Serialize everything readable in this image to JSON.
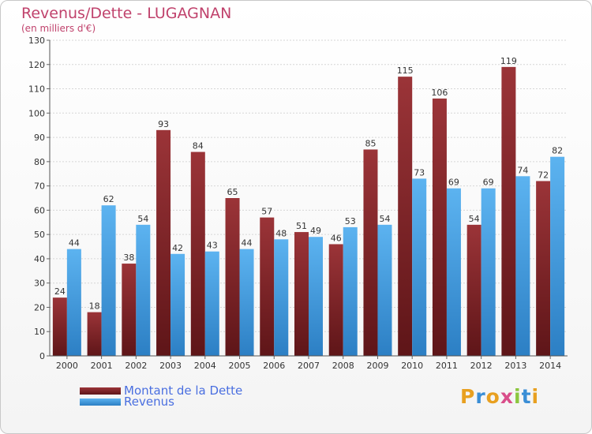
{
  "chart_data": {
    "type": "bar",
    "title": "Revenus/Dette - LUGAGNAN",
    "subtitle": "(en milliers d'€)",
    "categories": [
      "2000",
      "2001",
      "2002",
      "2003",
      "2004",
      "2005",
      "2006",
      "2007",
      "2008",
      "2009",
      "2010",
      "2011",
      "2012",
      "2013",
      "2014"
    ],
    "series": [
      {
        "name": "Montant de la Dette",
        "color": "#8a2a2f",
        "values": [
          24,
          18,
          38,
          93,
          84,
          65,
          57,
          51,
          46,
          85,
          115,
          106,
          54,
          119,
          72
        ]
      },
      {
        "name": "Revenus",
        "color": "#4aa3e6",
        "values": [
          44,
          62,
          54,
          42,
          43,
          44,
          48,
          49,
          53,
          54,
          73,
          69,
          69,
          74,
          82
        ]
      }
    ],
    "ylim": [
      0,
      130
    ],
    "yticks": [
      0,
      10,
      20,
      30,
      40,
      50,
      60,
      70,
      80,
      90,
      100,
      110,
      120,
      130
    ],
    "grid": true,
    "legend_position": "bottom-left"
  },
  "logo": {
    "letters": [
      "P",
      "r",
      "o",
      "x",
      "i",
      "t",
      "i"
    ],
    "colors": [
      "#e8a020",
      "#3a8ed6",
      "#e8a020",
      "#d94e8a",
      "#8cc63f",
      "#3a8ed6",
      "#e8a020"
    ]
  }
}
